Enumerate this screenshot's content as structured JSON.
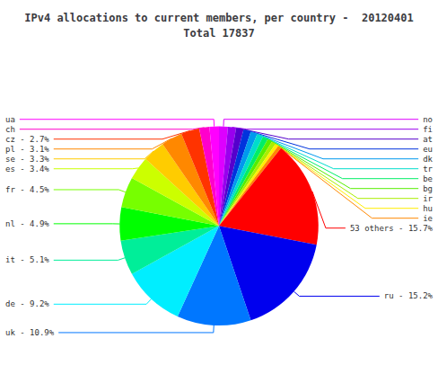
{
  "chart_data": {
    "type": "pie",
    "title": "IPv4 allocations to current members, per country -  20120401\nTotal 17837",
    "categories": [
      "no",
      "fi",
      "at",
      "eu",
      "dk",
      "tr",
      "be",
      "bg",
      "ir",
      "hu",
      "ie",
      "53 others - 15.7%",
      "ru - 15.2%",
      "uk - 10.9%",
      "de - 9.2%",
      "it - 5.1%",
      "nl - 4.9%",
      "fr - 4.5%",
      "es - 3.4%",
      "se - 3.3%",
      "pl - 3.1%",
      "cz - 2.7%",
      "ch",
      "ua"
    ],
    "values": [
      1.3,
      1.2,
      1.1,
      1.1,
      1.0,
      0.9,
      0.8,
      0.7,
      0.6,
      0.5,
      0.5,
      15.7,
      15.2,
      10.9,
      9.2,
      5.1,
      4.9,
      4.5,
      3.4,
      3.3,
      3.1,
      2.7,
      1.5,
      1.4
    ],
    "colors": [
      "#dd00ff",
      "#9900ee",
      "#5500cc",
      "#0033dd",
      "#0099ee",
      "#00ddcc",
      "#00ee66",
      "#55ee00",
      "#aaee00",
      "#ffee00",
      "#ff8800",
      "#ff0000",
      "#0000ee",
      "#0077ff",
      "#00eeff",
      "#00ee99",
      "#00ff00",
      "#77ff00",
      "#ccff00",
      "#ffcc00",
      "#ff8800",
      "#ff3300",
      "#ff00cc",
      "#ff00ff"
    ]
  }
}
